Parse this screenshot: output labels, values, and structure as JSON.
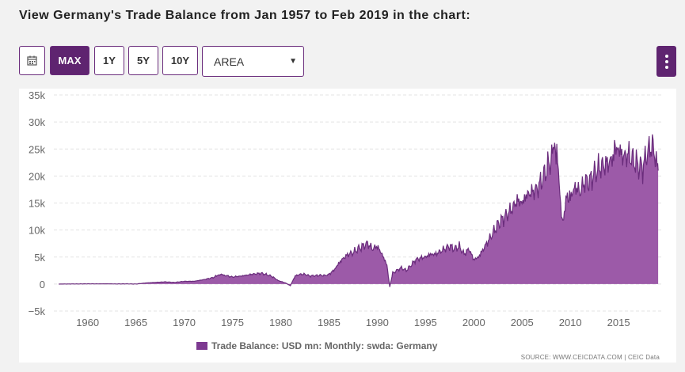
{
  "heading": "View Germany's Trade Balance from Jan 1957 to Feb 2019 in the chart:",
  "toolbar": {
    "calendar_icon": "calendar-icon",
    "ranges": [
      "MAX",
      "1Y",
      "5Y",
      "10Y"
    ],
    "active_range": "MAX",
    "chart_type_value": "AREA",
    "menu_icon": "vertical-dots-icon"
  },
  "legend_label": "Trade Balance: USD mn: Monthly: swda: Germany",
  "source_text": "SOURCE: WWW.CEICDATA.COM | CEIC Data",
  "chart_data": {
    "type": "area",
    "title": "",
    "xlabel": "",
    "ylabel": "",
    "xlim": [
      1956.5,
      2019.5
    ],
    "ylim": [
      -5000,
      35000
    ],
    "x_ticks": [
      1960,
      1965,
      1970,
      1975,
      1980,
      1985,
      1990,
      1995,
      2000,
      2005,
      2010,
      2015
    ],
    "y_ticks": [
      -5000,
      0,
      5000,
      10000,
      15000,
      20000,
      25000,
      30000,
      35000
    ],
    "y_tick_labels": [
      "−5k",
      "0",
      "5k",
      "10k",
      "15k",
      "20k",
      "25k",
      "30k",
      "35k"
    ],
    "grid": "horizontal dashed",
    "legend_position": "bottom",
    "colors": {
      "fill": "#9c5aa8",
      "line": "#6a2c7c"
    },
    "series": [
      {
        "name": "Trade Balance: USD mn: Monthly: swda: Germany",
        "x": [
          1957.0,
          1958.0,
          1959.0,
          1960.0,
          1961.0,
          1962.0,
          1963.0,
          1964.0,
          1965.0,
          1966.0,
          1967.0,
          1968.0,
          1969.0,
          1970.0,
          1971.0,
          1972.0,
          1973.0,
          1973.7,
          1974.5,
          1975.0,
          1976.0,
          1977.0,
          1978.0,
          1979.0,
          1979.8,
          1980.5,
          1981.0,
          1981.5,
          1982.0,
          1982.5,
          1983.0,
          1984.0,
          1984.8,
          1985.5,
          1986.0,
          1986.5,
          1987.0,
          1987.5,
          1988.0,
          1988.5,
          1989.0,
          1989.5,
          1990.0,
          1990.5,
          1991.0,
          1991.3,
          1991.6,
          1992.0,
          1992.5,
          1993.0,
          1993.5,
          1994.0,
          1994.5,
          1995.0,
          1995.5,
          1996.0,
          1996.5,
          1997.0,
          1997.5,
          1998.0,
          1998.5,
          1999.0,
          1999.5,
          2000.0,
          2000.5,
          2001.0,
          2001.5,
          2002.0,
          2002.5,
          2003.0,
          2003.5,
          2004.0,
          2004.5,
          2005.0,
          2005.5,
          2006.0,
          2006.5,
          2007.0,
          2007.5,
          2008.0,
          2008.3,
          2008.6,
          2009.0,
          2009.3,
          2009.7,
          2010.0,
          2010.5,
          2011.0,
          2011.5,
          2012.0,
          2012.5,
          2013.0,
          2013.5,
          2014.0,
          2014.5,
          2014.8,
          2015.0,
          2015.5,
          2016.0,
          2016.5,
          2017.0,
          2017.5,
          2018.0,
          2018.5,
          2018.8,
          2019.0,
          2019.1
        ],
        "values": [
          0,
          10,
          20,
          40,
          30,
          40,
          20,
          40,
          0,
          200,
          300,
          400,
          300,
          500,
          500,
          800,
          1200,
          1800,
          1500,
          1300,
          1500,
          1800,
          2000,
          1500,
          600,
          200,
          -300,
          1500,
          1800,
          1800,
          1500,
          1600,
          1600,
          2500,
          3800,
          4800,
          5500,
          5800,
          6500,
          7000,
          7500,
          6500,
          7000,
          5500,
          3500,
          -500,
          2000,
          2500,
          3000,
          2500,
          3500,
          4500,
          4800,
          5000,
          5500,
          5500,
          6000,
          6500,
          7000,
          6500,
          7000,
          5500,
          6500,
          4500,
          5000,
          6500,
          8000,
          9500,
          11000,
          12000,
          13000,
          14000,
          15500,
          15000,
          16500,
          17000,
          17500,
          19000,
          21000,
          23000,
          24500,
          25500,
          14000,
          12000,
          17000,
          16000,
          18000,
          17000,
          19000,
          19000,
          20500,
          21500,
          22000,
          22500,
          23500,
          26000,
          25000,
          23500,
          24000,
          23000,
          22000,
          21500,
          24500,
          25500,
          23000,
          22000,
          21000
        ]
      }
    ]
  }
}
